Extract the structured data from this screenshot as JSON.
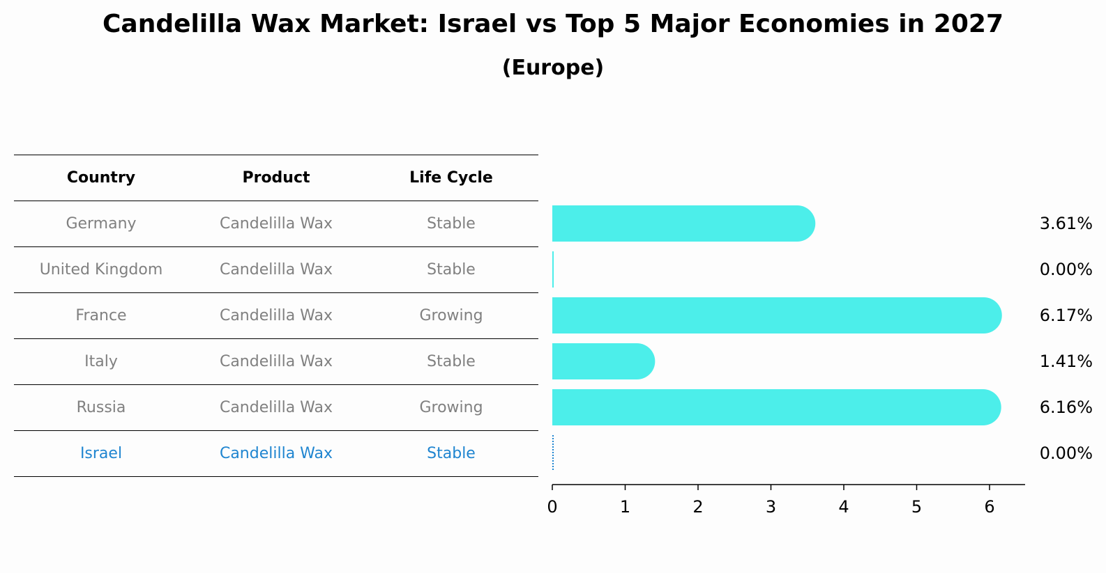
{
  "title": "Candelilla Wax Market: Israel vs Top 5 Major Economies in 2027",
  "subtitle": "(Europe)",
  "table": {
    "headers": [
      "Country",
      "Product",
      "Life Cycle"
    ],
    "rows": [
      {
        "country": "Germany",
        "product": "Candelilla Wax",
        "life_cycle": "Stable"
      },
      {
        "country": "United Kingdom",
        "product": "Candelilla Wax",
        "life_cycle": "Stable"
      },
      {
        "country": "France",
        "product": "Candelilla Wax",
        "life_cycle": "Growing"
      },
      {
        "country": "Italy",
        "product": "Candelilla Wax",
        "life_cycle": "Stable"
      },
      {
        "country": "Russia",
        "product": "Candelilla Wax",
        "life_cycle": "Growing"
      },
      {
        "country": "Israel",
        "product": "Candelilla Wax",
        "life_cycle": "Stable"
      }
    ]
  },
  "colors": {
    "bar": "#4ceeea",
    "highlight": "#1f85d0",
    "muted_text": "#808080"
  },
  "chart_data": {
    "type": "bar",
    "orientation": "horizontal",
    "categories": [
      "Germany",
      "United Kingdom",
      "France",
      "Italy",
      "Russia",
      "Israel"
    ],
    "values": [
      3.61,
      0.0,
      6.17,
      1.41,
      6.16,
      0.0
    ],
    "value_labels": [
      "3.61%",
      "0.00%",
      "6.17%",
      "1.41%",
      "6.16%",
      "0.00%"
    ],
    "xlim": [
      0,
      6.5
    ],
    "xticks": [
      0,
      1,
      2,
      3,
      4,
      5,
      6
    ],
    "highlight_category": "Israel",
    "title": "Candelilla Wax Market: Israel vs Top 5 Major Economies in 2027",
    "xlabel": "",
    "ylabel": ""
  }
}
